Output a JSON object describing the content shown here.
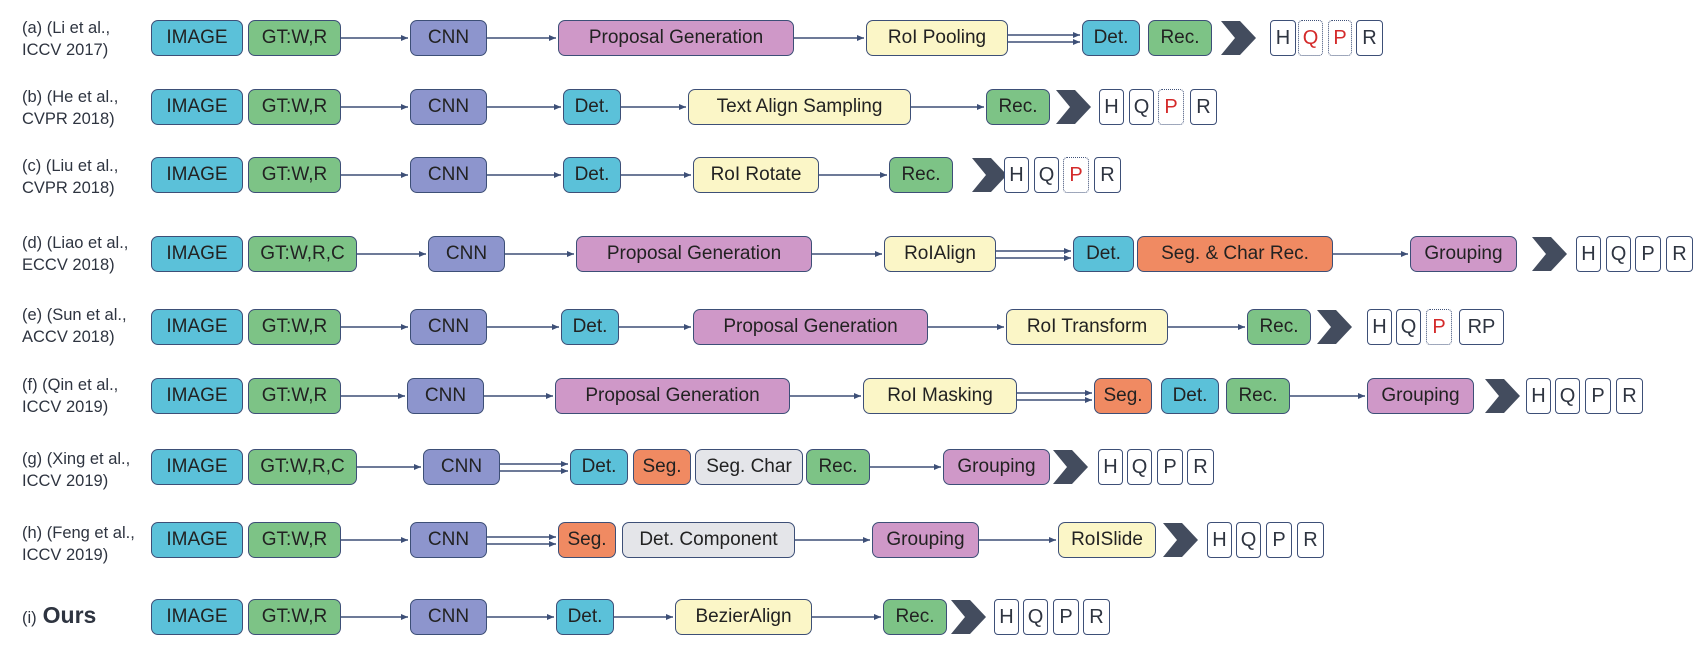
{
  "rows": [
    {
      "label": "(a) (Li et al., ICCV 2017)",
      "boxes": [
        "IMAGE",
        "GT:W,R",
        "CNN",
        "Proposal Generation",
        "RoI Pooling",
        "Det.",
        "Rec."
      ],
      "outputs": [
        "H",
        "Q",
        "P",
        "R"
      ]
    },
    {
      "label": "(b) (He et al., CVPR 2018)",
      "boxes": [
        "IMAGE",
        "GT:W,R",
        "CNN",
        "Det.",
        "Text Align Sampling",
        "Rec."
      ],
      "outputs": [
        "H",
        "Q",
        "P",
        "R"
      ]
    },
    {
      "label": "(c) (Liu et al., CVPR 2018)",
      "boxes": [
        "IMAGE",
        "GT:W,R",
        "CNN",
        "Det.",
        "RoI Rotate",
        "Rec."
      ],
      "outputs": [
        "H",
        "Q",
        "P",
        "R"
      ]
    },
    {
      "label": "(d) (Liao et al., ECCV 2018)",
      "boxes": [
        "IMAGE",
        "GT:W,R,C",
        "CNN",
        "Proposal Generation",
        "RoIAlign",
        "Det.",
        "Seg. & Char Rec.",
        "Grouping"
      ],
      "outputs": [
        "H",
        "Q",
        "P",
        "R"
      ]
    },
    {
      "label": "(e) (Sun et al., ACCV 2018)",
      "boxes": [
        "IMAGE",
        "GT:W,R",
        "CNN",
        "Det.",
        "Proposal Generation",
        "RoI Transform",
        "Rec."
      ],
      "outputs": [
        "H",
        "Q",
        "P",
        "RP"
      ]
    },
    {
      "label": "(f) (Qin et al., ICCV  2019)",
      "boxes": [
        "IMAGE",
        "GT:W,R",
        "CNN",
        "Proposal Generation",
        "RoI Masking",
        "Seg.",
        "Det.",
        "Rec.",
        "Grouping"
      ],
      "outputs": [
        "H",
        "Q",
        "P",
        "R"
      ]
    },
    {
      "label": "(g) (Xing et al., ICCV 2019)",
      "boxes": [
        "IMAGE",
        "GT:W,R,C",
        "CNN",
        "Det.",
        "Seg.",
        "Seg. Char",
        "Rec.",
        "Grouping"
      ],
      "outputs": [
        "H",
        "Q",
        "P",
        "R"
      ]
    },
    {
      "label": "(h) (Feng et al., ICCV 2019)",
      "boxes": [
        "IMAGE",
        "GT:W,R",
        "CNN",
        "Seg.",
        "Det. Component",
        "Grouping",
        "RoISlide"
      ],
      "outputs": [
        "H",
        "Q",
        "P",
        "R"
      ]
    },
    {
      "label_prefix": "(i)",
      "label": "Ours",
      "boxes": [
        "IMAGE",
        "GT:W,R",
        "CNN",
        "Det.",
        "BezierAlign",
        "Rec."
      ],
      "outputs": [
        "H",
        "Q",
        "P",
        "R"
      ]
    }
  ],
  "colors": {
    "image": "#5bc1d9",
    "gt": "#7dc386",
    "cnn": "#8d95cd",
    "proposal": "#cf98c8",
    "roi": "#fbf6c7",
    "seg": "#f08a62",
    "grey": "#e4e5e9",
    "edge": "#3d4f77",
    "chevron": "#434c5e",
    "highlight": "#d42a2a"
  }
}
